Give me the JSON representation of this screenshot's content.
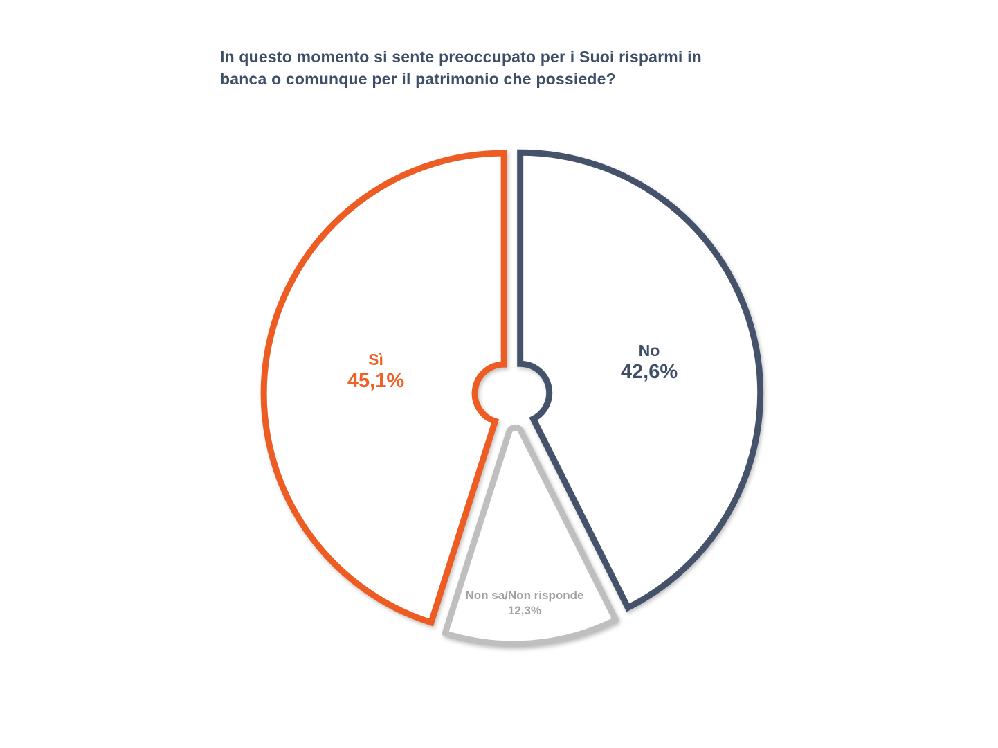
{
  "page": {
    "background_color": "#FFFFFF"
  },
  "title": {
    "lines": [
      "In questo momento si sente preoccupato per i Suoi risparmi in",
      "banca o comunque per il patrimonio che possiede?"
    ],
    "color": "#3E4E66"
  },
  "chart_data": {
    "type": "pie",
    "title": "In questo momento si sente preoccupato per i Suoi risparmi in banca o comunque per il patrimonio che possiede?",
    "unit": "percent",
    "start_angle_deg": 0,
    "direction": "clockwise",
    "donut_hole": true,
    "style": "outlined-white-fill",
    "slices": [
      {
        "label": "No",
        "value": 42.6,
        "display_value": "42,6%",
        "stroke_color": "#45526B",
        "label_color": "#3E4E66",
        "exploded": false
      },
      {
        "label": "Non sa/Non risponde",
        "value": 12.3,
        "display_value": "12,3%",
        "stroke_color": "#BFBFBF",
        "label_color": "#A0A0A0",
        "exploded": true
      },
      {
        "label": "Sì",
        "value": 45.1,
        "display_value": "45,1%",
        "stroke_color": "#ED5B24",
        "label_color": "#ED6228",
        "exploded": false
      }
    ]
  }
}
